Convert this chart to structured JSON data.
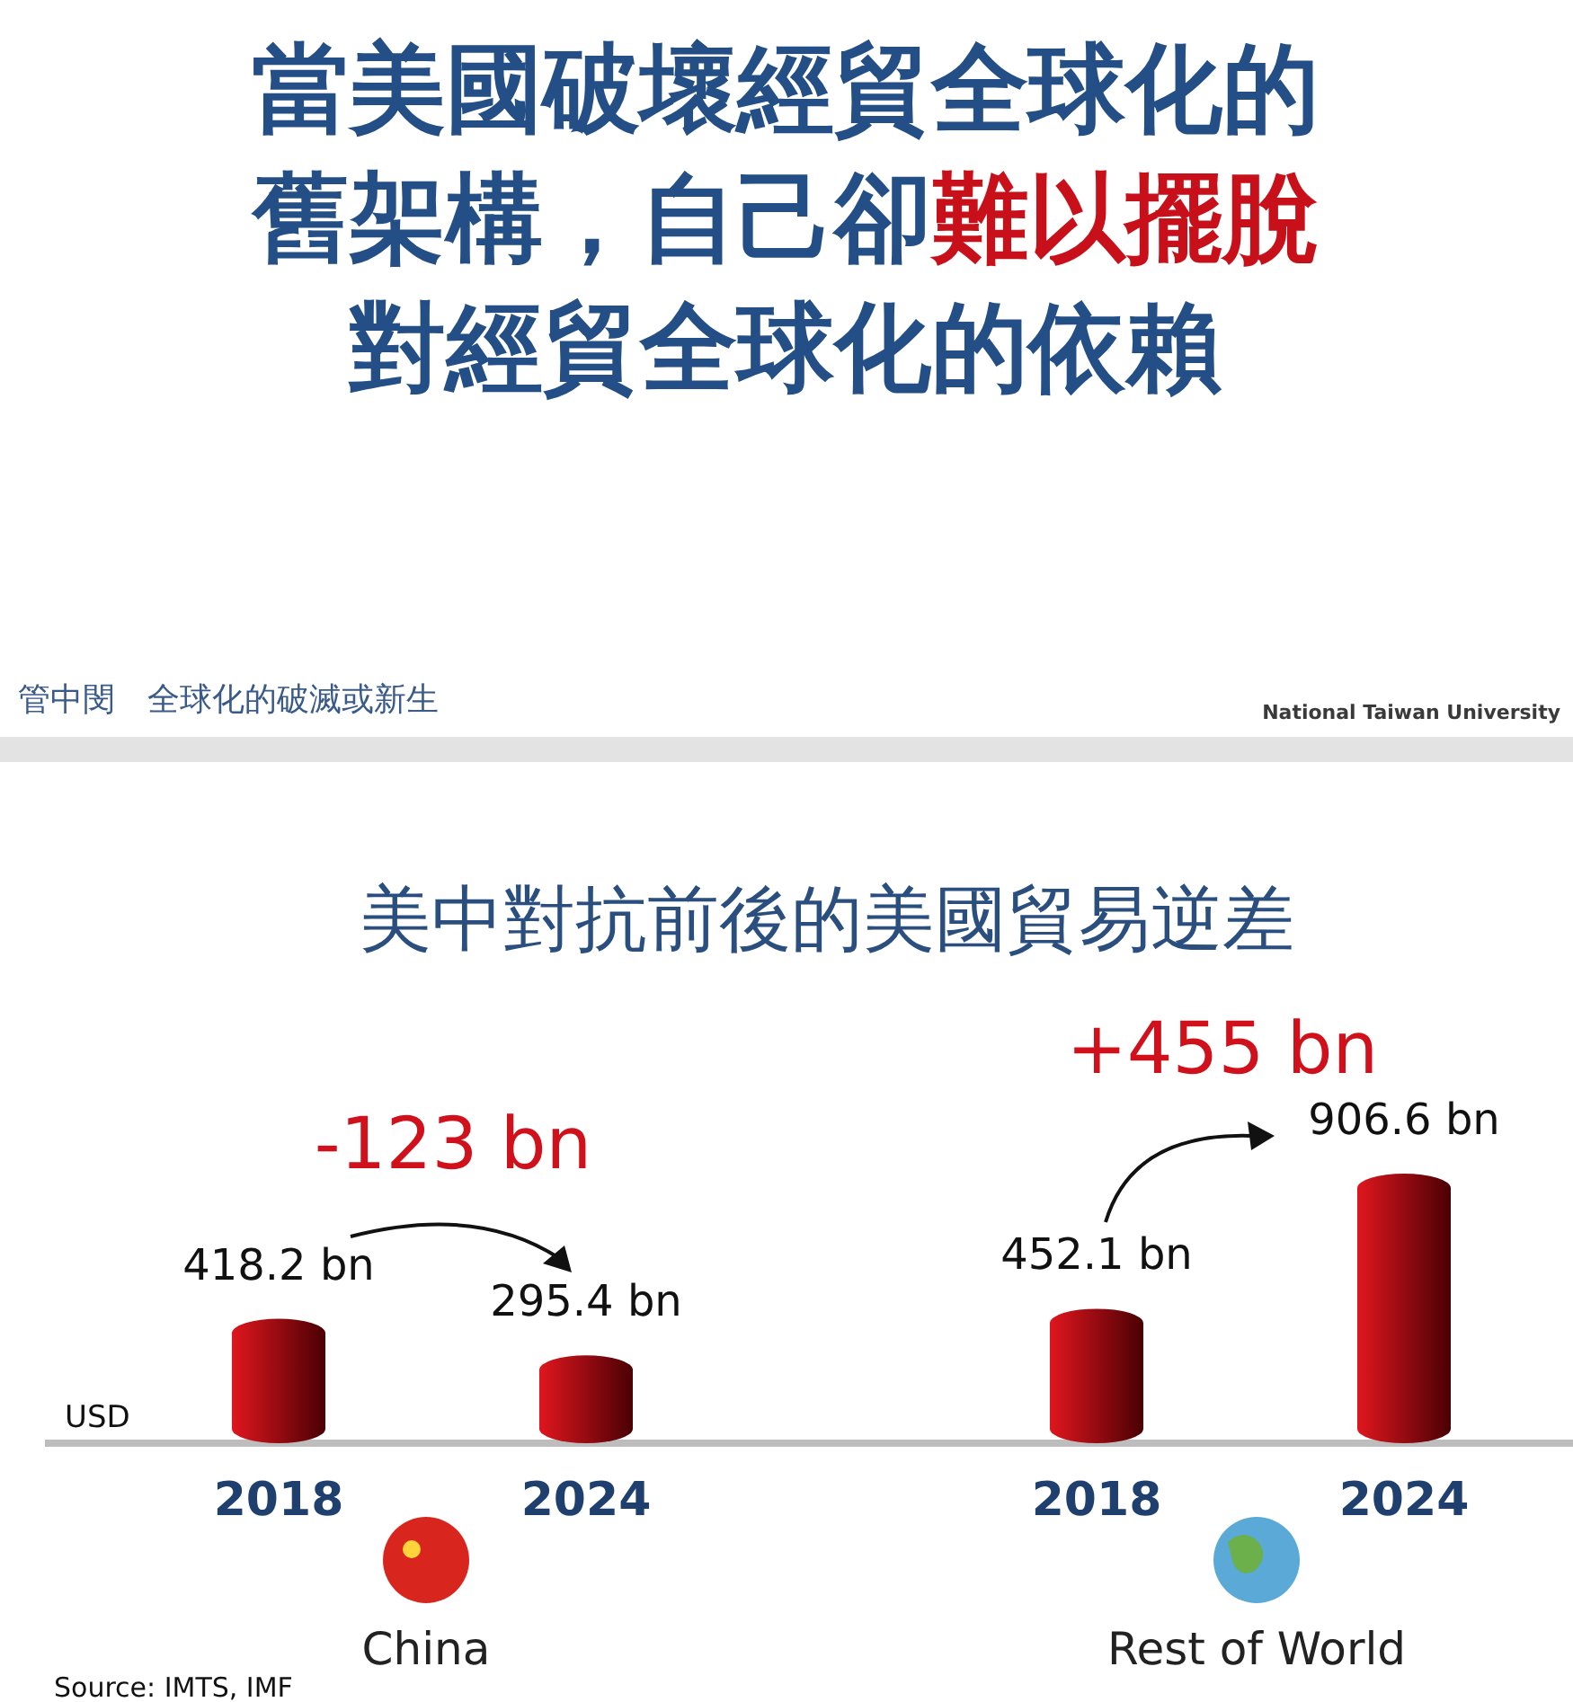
{
  "chart_data": {
    "type": "bar",
    "title": "美中對抗前後的美國貿易逆差",
    "categories": [
      "2018",
      "2024",
      "2018",
      "2024"
    ],
    "values": [
      418.2,
      295.4,
      452.1,
      906.6
    ],
    "value_labels": [
      "418.2 bn",
      "295.4 bn",
      "452.1 bn",
      "906.6 bn"
    ],
    "color": "#e0161e",
    "annotations": [
      "當美國破壞經貿全球化的舊架構，自己卻**難以擺脫**對經貿全球化的依賴",
      "管中閔　全球化的破滅或新生",
      "National Taiwan University",
      "-123 bn",
      "+455 bn",
      "USD",
      "China",
      "Rest of World",
      "Source: IMTS, IMF"
    ]
  }
}
